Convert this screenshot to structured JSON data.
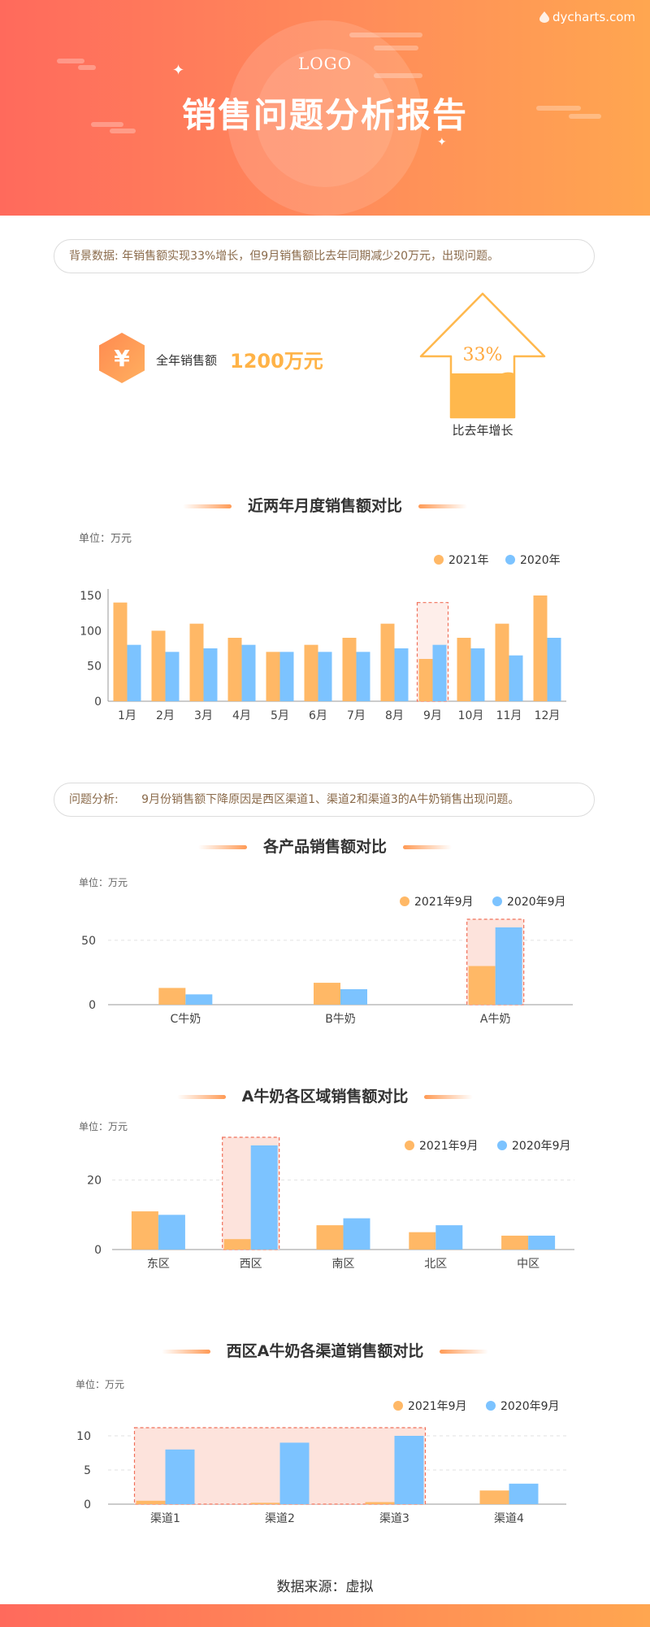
{
  "header": {
    "brand": "dycharts.com",
    "logo": "LOGO",
    "title": "销售问题分析报告"
  },
  "background_note": {
    "label": "背景数据:",
    "text": "年销售额实现33%增长，但9月销售额比去年同期减少20万元，出现问题。"
  },
  "kpi": {
    "icon": "yuan-hexagon-icon",
    "symbol": "¥",
    "label": "全年销售额",
    "value": "1200万元",
    "growth_pct": "33%",
    "growth_label": "比去年增长"
  },
  "analysis_note": {
    "label": "问题分析:",
    "text": "9月份销售额下降原因是西区渠道1、渠道2和渠道3的A牛奶销售出现问题。"
  },
  "colors": {
    "y2021": "#ffb866",
    "y2020": "#7cc3ff",
    "accent": "#ff8a55",
    "highlight_fill": "#fde3dc",
    "highlight_stroke": "#f0705a"
  },
  "source": "数据来源：虚拟",
  "chart_data": [
    {
      "type": "bar",
      "title": "近两年月度销售额对比",
      "unit": "单位：万元",
      "categories": [
        "1月",
        "2月",
        "3月",
        "4月",
        "5月",
        "6月",
        "7月",
        "8月",
        "9月",
        "10月",
        "11月",
        "12月"
      ],
      "series": [
        {
          "name": "2021年",
          "values": [
            140,
            100,
            110,
            90,
            70,
            80,
            90,
            110,
            60,
            90,
            110,
            150
          ]
        },
        {
          "name": "2020年",
          "values": [
            80,
            70,
            75,
            80,
            70,
            70,
            70,
            75,
            80,
            75,
            65,
            90
          ]
        }
      ],
      "yticks": [
        0,
        50,
        100,
        150
      ],
      "ylim": [
        0,
        150
      ],
      "grid": false,
      "legend": "top-right",
      "highlight": [
        "9月"
      ]
    },
    {
      "type": "bar",
      "title": "各产品销售额对比",
      "unit": "单位：万元",
      "categories": [
        "C牛奶",
        "B牛奶",
        "A牛奶"
      ],
      "series": [
        {
          "name": "2021年9月",
          "values": [
            13,
            17,
            30
          ]
        },
        {
          "name": "2020年9月",
          "values": [
            8,
            12,
            60
          ]
        }
      ],
      "yticks": [
        0,
        50
      ],
      "ylim": [
        0,
        60
      ],
      "grid": true,
      "legend": "top-right",
      "highlight": [
        "A牛奶"
      ]
    },
    {
      "type": "bar",
      "title": "A牛奶各区域销售额对比",
      "unit": "单位：万元",
      "categories": [
        "东区",
        "西区",
        "南区",
        "北区",
        "中区"
      ],
      "series": [
        {
          "name": "2021年9月",
          "values": [
            11,
            3,
            7,
            5,
            4
          ]
        },
        {
          "name": "2020年9月",
          "values": [
            10,
            30,
            9,
            7,
            4
          ]
        }
      ],
      "yticks": [
        0,
        20
      ],
      "ylim": [
        0,
        30
      ],
      "grid": true,
      "legend": "top-right",
      "highlight": [
        "西区"
      ]
    },
    {
      "type": "bar",
      "title": "西区A牛奶各渠道销售额对比",
      "unit": "单位：万元",
      "categories": [
        "渠道1",
        "渠道2",
        "渠道3",
        "渠道4"
      ],
      "series": [
        {
          "name": "2021年9月",
          "values": [
            0.5,
            0.2,
            0.3,
            2
          ]
        },
        {
          "name": "2020年9月",
          "values": [
            8,
            9,
            10,
            3
          ]
        }
      ],
      "yticks": [
        0,
        5,
        10
      ],
      "ylim": [
        0,
        10
      ],
      "grid": true,
      "legend": "top-right",
      "highlight": [
        "渠道1",
        "渠道2",
        "渠道3"
      ]
    }
  ]
}
